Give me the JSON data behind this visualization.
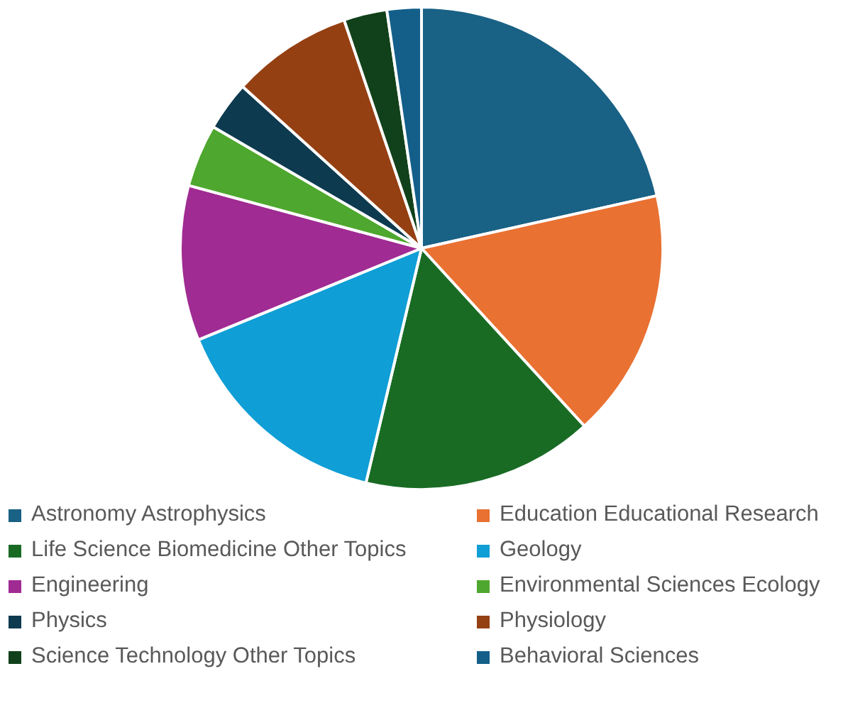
{
  "chart_data": {
    "type": "pie",
    "categories": [
      "Astronomy Astrophysics",
      "Education Educational Research",
      "Life Science Biomedicine Other Topics",
      "Geology",
      "Engineering",
      "Environmental Sciences Ecology",
      "Physics",
      "Physiology",
      "Science Technology Other Topics",
      "Behavioral Sciences"
    ],
    "values": [
      21.5,
      16.7,
      15.5,
      15.1,
      10.4,
      4.2,
      3.3,
      8.1,
      2.9,
      2.3
    ],
    "colors": [
      "#196185",
      "#e97132",
      "#196b24",
      "#0f9ed5",
      "#a02b93",
      "#4ea72e",
      "#0d3a4f",
      "#954012",
      "#11411a",
      "#135f8a"
    ],
    "legend": "bottom"
  }
}
